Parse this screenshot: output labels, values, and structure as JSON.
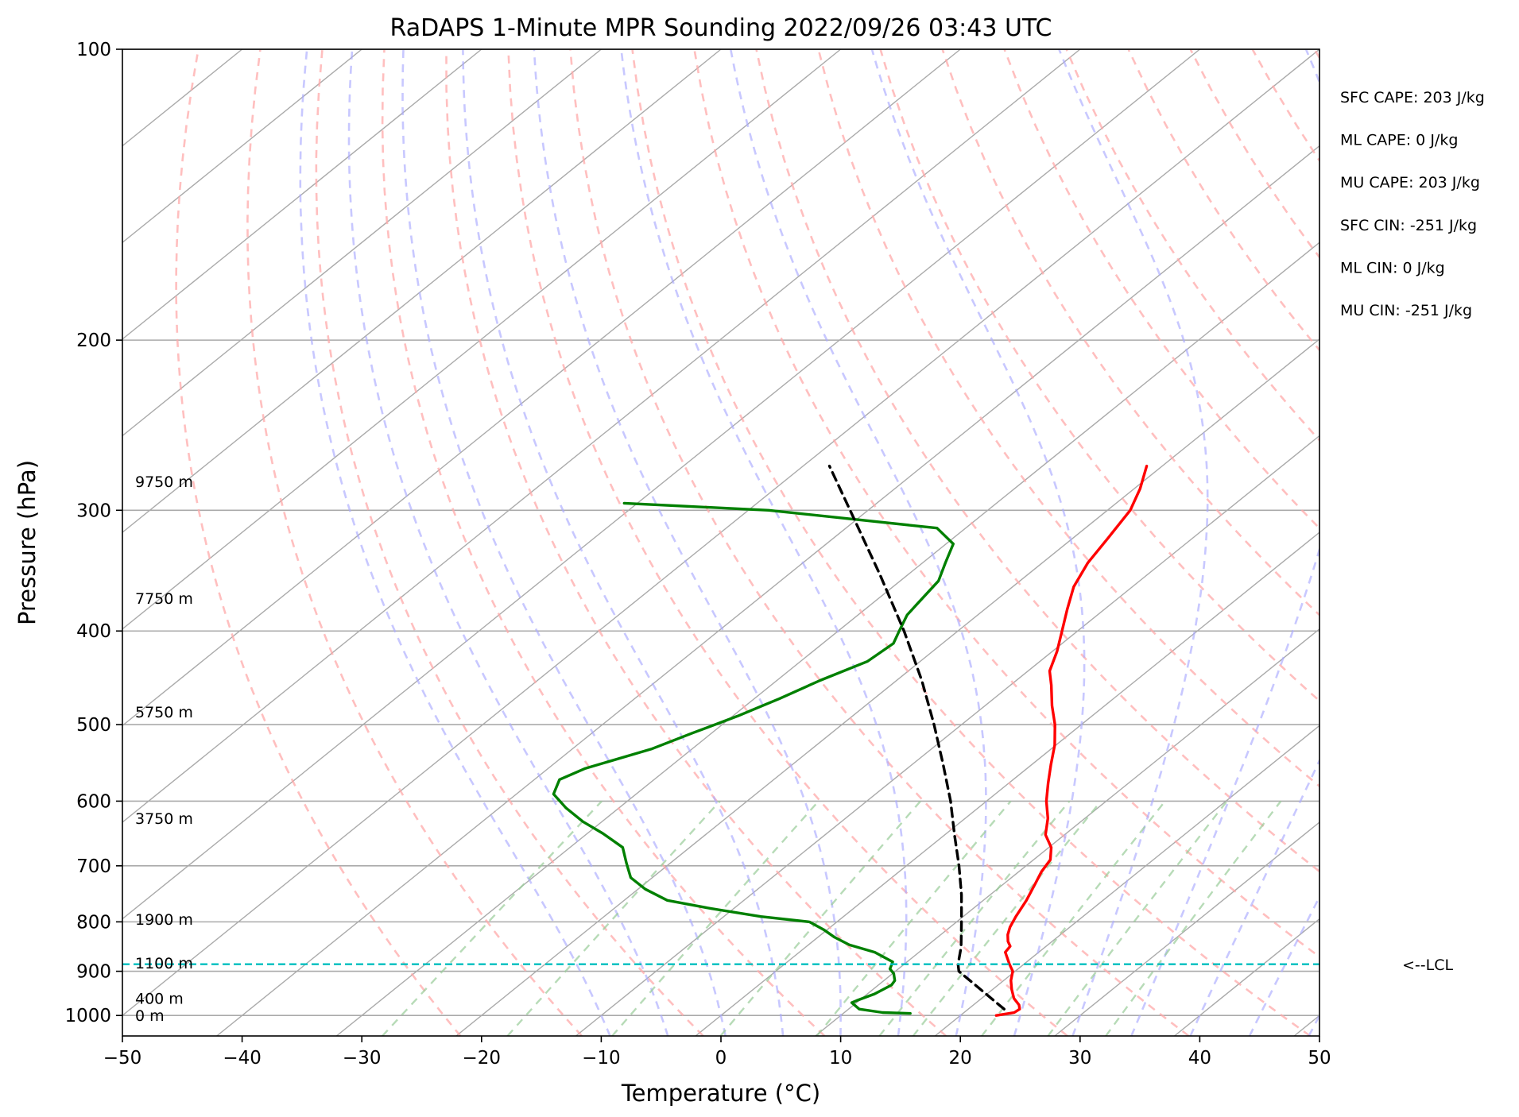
{
  "chart_data": {
    "type": "line",
    "subtype": "skew-t log-p sounding",
    "title": "RaDAPS 1-Minute MPR Sounding 2022/09/26 03:43 UTC",
    "xlabel": "Temperature (°C)",
    "ylabel": "Pressure (hPa)",
    "xlim": [
      -50,
      50
    ],
    "ylim": [
      1050,
      100
    ],
    "y_scale": "log",
    "skew_degrees_per_decade": 100,
    "x_ticks": [
      -50,
      -40,
      -30,
      -20,
      -10,
      0,
      10,
      20,
      30,
      40,
      50
    ],
    "x_tick_labels": [
      "−50",
      "−40",
      "−30",
      "−20",
      "−10",
      "0",
      "10",
      "20",
      "30",
      "40",
      "50"
    ],
    "y_ticks": [
      100,
      200,
      300,
      400,
      500,
      600,
      700,
      800,
      900,
      1000
    ],
    "y_tick_labels": [
      "100",
      "200",
      "300",
      "400",
      "500",
      "600",
      "700",
      "800",
      "900",
      "1000"
    ],
    "grid": true,
    "colors": {
      "temperature": "#ff0000",
      "dewpoint": "#008000",
      "parcel": "#000000",
      "isotherm": "#aaaaaa",
      "dry_adiabat": "#ffaaaa",
      "moist_adiabat": "#aaaaff",
      "mixing_ratio": "#99cc99",
      "lcl": "#00bfbf"
    },
    "isotherms": [
      -150,
      -140,
      -130,
      -120,
      -110,
      -100,
      -90,
      -80,
      -70,
      -60,
      -50,
      -40,
      -30,
      -20,
      -10,
      0,
      10,
      20,
      30,
      40,
      50
    ],
    "dry_adiabats_K": [
      250,
      260,
      270,
      280,
      290,
      300,
      310,
      320,
      330,
      340,
      350,
      360,
      370,
      380,
      390,
      400,
      410,
      420,
      430
    ],
    "moist_adiabats_start_C": [
      -10,
      -5,
      0,
      5,
      10,
      15,
      20,
      25,
      30,
      35,
      40,
      45,
      50,
      55
    ],
    "mixing_ratio_lines_start_C": [
      -26.7,
      -16.3,
      -7.6,
      1.4,
      9.4,
      14.6,
      17.4,
      23.1,
      28.6,
      33.4
    ],
    "series": [
      {
        "name": "Temperature",
        "points": [
          [
            1000,
            23.0
          ],
          [
            993,
            24.2
          ],
          [
            985,
            24.3
          ],
          [
            975,
            23.8
          ],
          [
            960,
            22.7
          ],
          [
            940,
            21.6
          ],
          [
            920,
            20.6
          ],
          [
            900,
            19.8
          ],
          [
            885,
            18.8
          ],
          [
            860,
            17.2
          ],
          [
            848,
            17.0
          ],
          [
            838,
            16.3
          ],
          [
            825,
            15.6
          ],
          [
            810,
            15.0
          ],
          [
            790,
            14.4
          ],
          [
            760,
            13.6
          ],
          [
            730,
            12.6
          ],
          [
            710,
            11.9
          ],
          [
            690,
            11.4
          ],
          [
            670,
            10.2
          ],
          [
            650,
            8.4
          ],
          [
            625,
            6.9
          ],
          [
            600,
            5.0
          ],
          [
            575,
            3.3
          ],
          [
            550,
            1.6
          ],
          [
            525,
            -0.1
          ],
          [
            500,
            -2.2
          ],
          [
            478,
            -4.4
          ],
          [
            455,
            -6.6
          ],
          [
            440,
            -8.2
          ],
          [
            420,
            -9.6
          ],
          [
            400,
            -11.3
          ],
          [
            380,
            -13.1
          ],
          [
            360,
            -14.9
          ],
          [
            340,
            -16.2
          ],
          [
            320,
            -17.1
          ],
          [
            300,
            -18.1
          ],
          [
            285,
            -19.5
          ],
          [
            270,
            -21.3
          ]
        ]
      },
      {
        "name": "Dewpoint",
        "points": [
          [
            995,
            15.6
          ],
          [
            993,
            13.2
          ],
          [
            985,
            10.9
          ],
          [
            970,
            9.6
          ],
          [
            965,
            9.8
          ],
          [
            950,
            10.6
          ],
          [
            930,
            11.1
          ],
          [
            920,
            10.9
          ],
          [
            905,
            10.1
          ],
          [
            895,
            9.3
          ],
          [
            880,
            8.8
          ],
          [
            860,
            6.3
          ],
          [
            845,
            3.4
          ],
          [
            830,
            1.4
          ],
          [
            815,
            -0.3
          ],
          [
            800,
            -2.3
          ],
          [
            790,
            -6.9
          ],
          [
            775,
            -11.9
          ],
          [
            760,
            -16.4
          ],
          [
            740,
            -19.4
          ],
          [
            720,
            -21.8
          ],
          [
            695,
            -23.7
          ],
          [
            670,
            -25.6
          ],
          [
            648,
            -28.7
          ],
          [
            630,
            -31.6
          ],
          [
            610,
            -34.4
          ],
          [
            590,
            -36.9
          ],
          [
            570,
            -37.9
          ],
          [
            555,
            -36.9
          ],
          [
            530,
            -33.4
          ],
          [
            510,
            -31.6
          ],
          [
            490,
            -29.6
          ],
          [
            470,
            -27.9
          ],
          [
            450,
            -26.4
          ],
          [
            430,
            -24.4
          ],
          [
            412,
            -24.1
          ],
          [
            400,
            -24.9
          ],
          [
            385,
            -25.9
          ],
          [
            375,
            -26.2
          ],
          [
            355,
            -26.8
          ],
          [
            340,
            -28.1
          ],
          [
            325,
            -29.4
          ],
          [
            313,
            -32.4
          ],
          [
            300,
            -48.3
          ],
          [
            295,
            -61.1
          ]
        ]
      },
      {
        "name": "Parcel",
        "points": [
          [
            985,
            23.0
          ],
          [
            900,
            15.3
          ],
          [
            885,
            14.5
          ],
          [
            850,
            13.0
          ],
          [
            800,
            10.4
          ],
          [
            750,
            7.6
          ],
          [
            700,
            4.4
          ],
          [
            650,
            0.8
          ],
          [
            600,
            -3.0
          ],
          [
            550,
            -7.4
          ],
          [
            500,
            -12.3
          ],
          [
            450,
            -17.9
          ],
          [
            400,
            -24.5
          ],
          [
            350,
            -32.3
          ],
          [
            300,
            -41.5
          ],
          [
            270,
            -47.8
          ]
        ]
      }
    ],
    "lcl_pressure_hPa": 885,
    "height_labels": [
      {
        "text": "9750 m",
        "p": 280
      },
      {
        "text": "7750 m",
        "p": 370
      },
      {
        "text": "5750 m",
        "p": 485
      },
      {
        "text": "3750 m",
        "p": 625
      },
      {
        "text": "1900 m",
        "p": 795
      },
      {
        "text": "1100 m",
        "p": 882
      },
      {
        "text": "400 m",
        "p": 960
      },
      {
        "text": "0 m",
        "p": 1000
      }
    ],
    "annotations": {
      "lcl_label": "<--LCL",
      "indices": [
        "SFC CAPE: 203 J/kg",
        "ML CAPE: 0 J/kg",
        "MU CAPE: 203 J/kg",
        "SFC CIN: -251 J/kg",
        "ML CIN: 0 J/kg",
        "MU CIN: -251 J/kg"
      ]
    }
  }
}
